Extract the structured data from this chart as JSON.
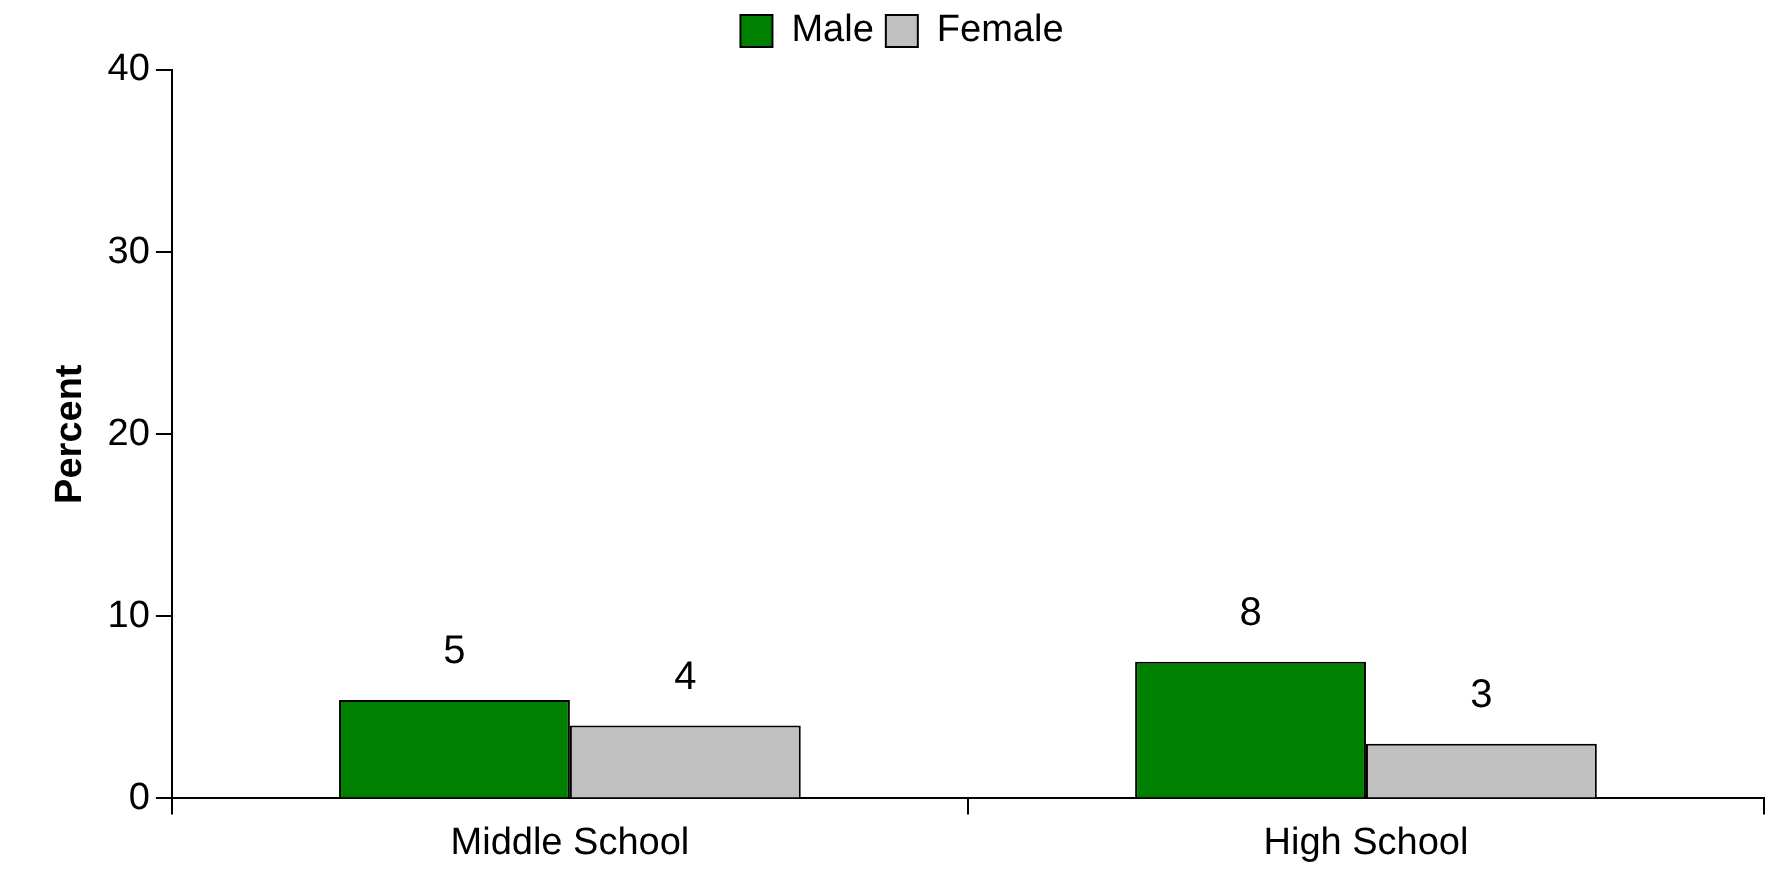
{
  "chart_data": {
    "type": "bar",
    "categories": [
      "Middle School",
      "High School"
    ],
    "ylabel": "Percent",
    "ylim": [
      0,
      40
    ],
    "yticks": [
      0,
      10,
      20,
      30,
      40
    ],
    "grid": false,
    "legend": "top",
    "series": [
      {
        "name": "Male",
        "color": "#008000",
        "values": [
          5.4,
          7.5
        ],
        "value_labels": [
          "5",
          "8"
        ]
      },
      {
        "name": "Female",
        "color": "#c0c0c0",
        "values": [
          4.0,
          3.0
        ],
        "value_labels": [
          "4",
          "3"
        ]
      }
    ]
  }
}
